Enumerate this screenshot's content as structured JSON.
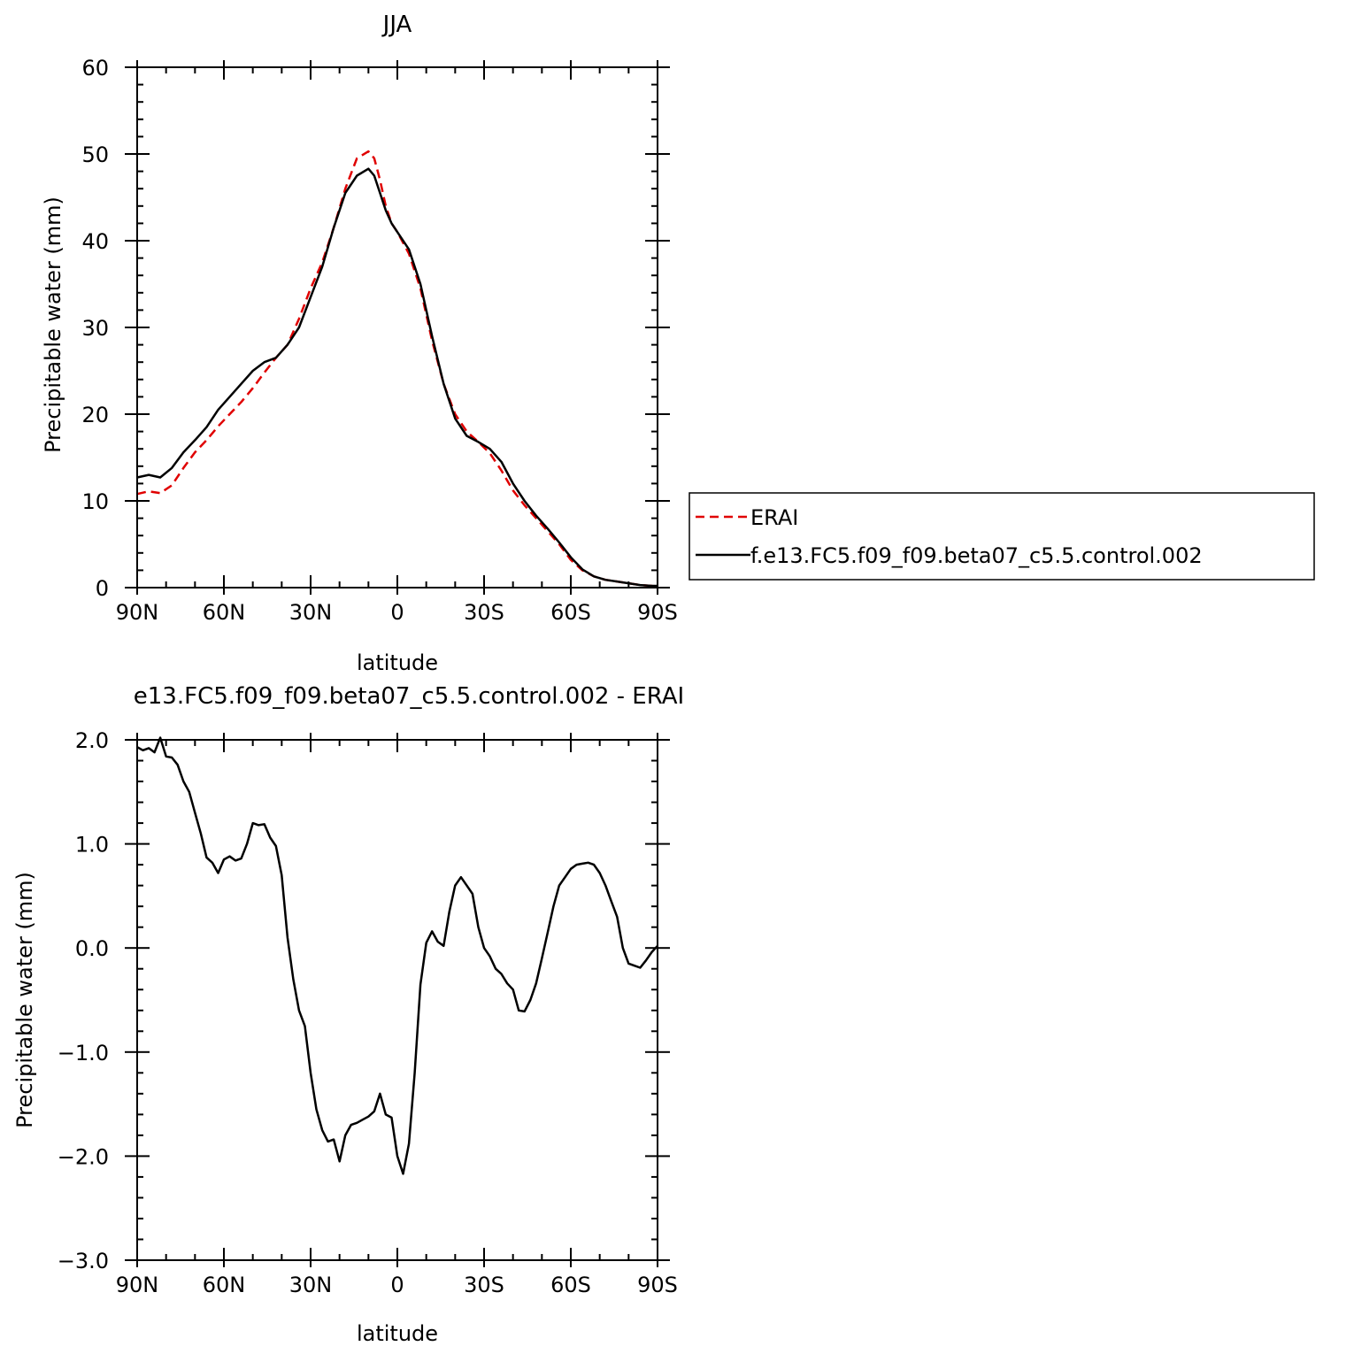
{
  "chart_data": [
    {
      "type": "line",
      "title": "JJA",
      "xlabel": "latitude",
      "ylabel": "Precipitable water (mm)",
      "xlim": [
        90,
        -90
      ],
      "ylim": [
        0,
        60
      ],
      "xtick_values": [
        90,
        60,
        30,
        0,
        -30,
        -60,
        -90
      ],
      "xtick_labels": [
        "90N",
        "60N",
        "30N",
        "0",
        "30S",
        "60S",
        "90S"
      ],
      "ytick_values": [
        0,
        10,
        20,
        30,
        40,
        50,
        60
      ],
      "ytick_labels": [
        "0",
        "10",
        "20",
        "30",
        "40",
        "50",
        "60"
      ],
      "legend_position": "right, outside plot",
      "series": [
        {
          "name": "ERAI",
          "color": "#e00000",
          "style": "dashed",
          "x": [
            90,
            86,
            82,
            78,
            74,
            70,
            66,
            62,
            58,
            54,
            50,
            46,
            42,
            38,
            34,
            30,
            26,
            22,
            18,
            14,
            10,
            8,
            6,
            4,
            2,
            0,
            -4,
            -8,
            -12,
            -16,
            -20,
            -24,
            -28,
            -32,
            -36,
            -40,
            -44,
            -48,
            -52,
            -56,
            -60,
            -64,
            -68,
            -72,
            -76,
            -80,
            -84,
            -88,
            -90
          ],
          "y": [
            10.8,
            11.1,
            10.9,
            11.8,
            13.8,
            15.6,
            17.0,
            18.6,
            20.0,
            21.4,
            23.0,
            24.8,
            26.5,
            28.0,
            31.0,
            34.5,
            37.5,
            41.5,
            46.0,
            49.5,
            50.3,
            49.5,
            47.0,
            44.0,
            42.0,
            41.0,
            38.5,
            34.5,
            28.5,
            23.5,
            20.0,
            18.0,
            16.8,
            15.5,
            13.5,
            11.2,
            9.5,
            8.0,
            6.5,
            5.0,
            3.2,
            2.0,
            1.3,
            0.9,
            0.7,
            0.5,
            0.3,
            0.2,
            0.2
          ]
        },
        {
          "name": "f.e13.FC5.f09_f09.beta07_c5.5.control.002",
          "color": "#000000",
          "style": "solid",
          "x": [
            90,
            86,
            82,
            78,
            74,
            70,
            66,
            62,
            58,
            54,
            50,
            46,
            42,
            38,
            34,
            30,
            26,
            22,
            18,
            14,
            10,
            8,
            6,
            4,
            2,
            0,
            -4,
            -8,
            -12,
            -16,
            -20,
            -24,
            -28,
            -32,
            -36,
            -40,
            -44,
            -48,
            -52,
            -56,
            -60,
            -64,
            -68,
            -72,
            -76,
            -80,
            -84,
            -88,
            -90
          ],
          "y": [
            12.7,
            13.0,
            12.7,
            13.8,
            15.6,
            17.0,
            18.5,
            20.5,
            22.0,
            23.5,
            25.0,
            26.0,
            26.5,
            28.0,
            30.0,
            33.5,
            37.0,
            41.5,
            45.5,
            47.5,
            48.3,
            47.5,
            45.5,
            43.5,
            42.0,
            41.0,
            39.0,
            35.0,
            29.0,
            23.5,
            19.5,
            17.5,
            16.8,
            16.0,
            14.5,
            12.0,
            10.0,
            8.3,
            6.8,
            5.2,
            3.5,
            2.1,
            1.3,
            0.9,
            0.7,
            0.5,
            0.3,
            0.2,
            0.2
          ]
        }
      ]
    },
    {
      "type": "line",
      "title": "e13.FC5.f09_f09.beta07_c5.5.control.002 - ERAI",
      "xlabel": "latitude",
      "ylabel": "Precipitable water (mm)",
      "xlim": [
        90,
        -90
      ],
      "ylim": [
        -3.0,
        2.0
      ],
      "xtick_values": [
        90,
        60,
        30,
        0,
        -30,
        -60,
        -90
      ],
      "xtick_labels": [
        "90N",
        "60N",
        "30N",
        "0",
        "30S",
        "60S",
        "90S"
      ],
      "ytick_values": [
        2.0,
        1.0,
        0.0,
        -1.0,
        -2.0,
        -3.0
      ],
      "ytick_labels": [
        "2.0",
        "1.0",
        "0.0",
        "−1.0",
        "−2.0",
        "−3.0"
      ],
      "series": [
        {
          "color": "#000000",
          "style": "solid",
          "x": [
            90,
            88,
            86,
            84,
            82,
            80,
            78,
            76,
            74,
            72,
            70,
            68,
            66,
            64,
            62,
            60,
            58,
            56,
            54,
            52,
            50,
            48,
            46,
            44,
            42,
            40,
            38,
            36,
            34,
            32,
            30,
            28,
            26,
            24,
            22,
            20,
            18,
            16,
            14,
            12,
            10,
            8,
            6,
            4,
            2,
            0,
            -2,
            -4,
            -6,
            -8,
            -10,
            -12,
            -14,
            -16,
            -18,
            -20,
            -22,
            -24,
            -26,
            -28,
            -30,
            -32,
            -34,
            -36,
            -38,
            -40,
            -42,
            -44,
            -46,
            -48,
            -50,
            -52,
            -54,
            -56,
            -58,
            -60,
            -62,
            -64,
            -66,
            -68,
            -70,
            -72,
            -74,
            -76,
            -78,
            -80,
            -82,
            -84,
            -86,
            -88,
            -90
          ],
          "y": [
            1.93,
            1.9,
            1.92,
            1.88,
            2.02,
            1.84,
            1.83,
            1.76,
            1.6,
            1.5,
            1.3,
            1.1,
            0.87,
            0.82,
            0.72,
            0.85,
            0.88,
            0.84,
            0.86,
            1.0,
            1.2,
            1.18,
            1.19,
            1.06,
            0.98,
            0.7,
            0.1,
            -0.3,
            -0.6,
            -0.75,
            -1.2,
            -1.55,
            -1.75,
            -1.86,
            -1.84,
            -2.05,
            -1.8,
            -1.7,
            -1.68,
            -1.65,
            -1.62,
            -1.57,
            -1.4,
            -1.6,
            -1.63,
            -2.0,
            -2.17,
            -1.88,
            -1.2,
            -0.35,
            0.05,
            0.16,
            0.06,
            0.02,
            0.35,
            0.6,
            0.68,
            0.6,
            0.52,
            0.2,
            0.0,
            -0.08,
            -0.2,
            -0.25,
            -0.34,
            -0.4,
            -0.6,
            -0.61,
            -0.5,
            -0.34,
            -0.1,
            0.15,
            0.4,
            0.6,
            0.68,
            0.76,
            0.8,
            0.81,
            0.82,
            0.8,
            0.72,
            0.6,
            0.45,
            0.3,
            0.0,
            -0.15,
            -0.17,
            -0.19,
            -0.12,
            -0.04,
            0.02
          ]
        }
      ]
    }
  ]
}
